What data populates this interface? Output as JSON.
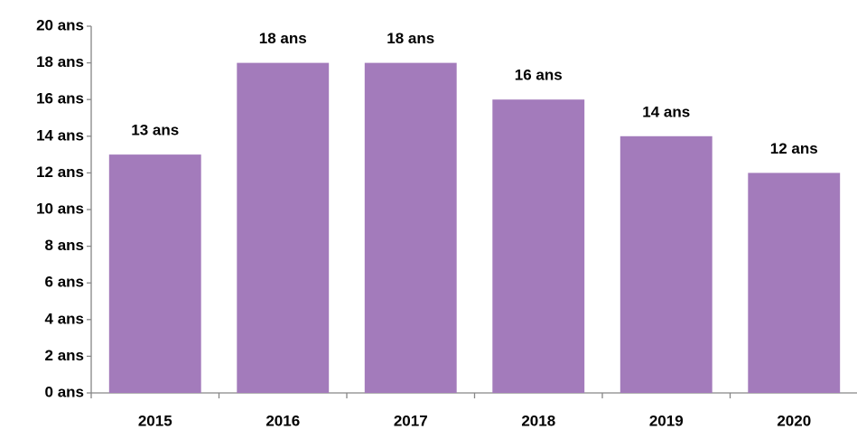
{
  "chart_data": {
    "type": "bar",
    "categories": [
      "2015",
      "2016",
      "2017",
      "2018",
      "2019",
      "2020"
    ],
    "values": [
      13,
      18,
      18,
      16,
      14,
      12
    ],
    "value_labels": [
      "13 ans",
      "18 ans",
      "18 ans",
      "16 ans",
      "14 ans",
      "12 ans"
    ],
    "color": "#a37bbb",
    "ylim": [
      0,
      20
    ],
    "yticks": [
      {
        "value": 0,
        "label": "0 ans"
      },
      {
        "value": 2,
        "label": "2 ans"
      },
      {
        "value": 4,
        "label": "4 ans"
      },
      {
        "value": 6,
        "label": "6 ans"
      },
      {
        "value": 8,
        "label": "8 ans"
      },
      {
        "value": 10,
        "label": "10 ans"
      },
      {
        "value": 12,
        "label": "12 ans"
      },
      {
        "value": 14,
        "label": "14 ans"
      },
      {
        "value": 16,
        "label": "16 ans"
      },
      {
        "value": 18,
        "label": "18 ans"
      },
      {
        "value": 20,
        "label": "20 ans"
      }
    ],
    "grid": false
  }
}
